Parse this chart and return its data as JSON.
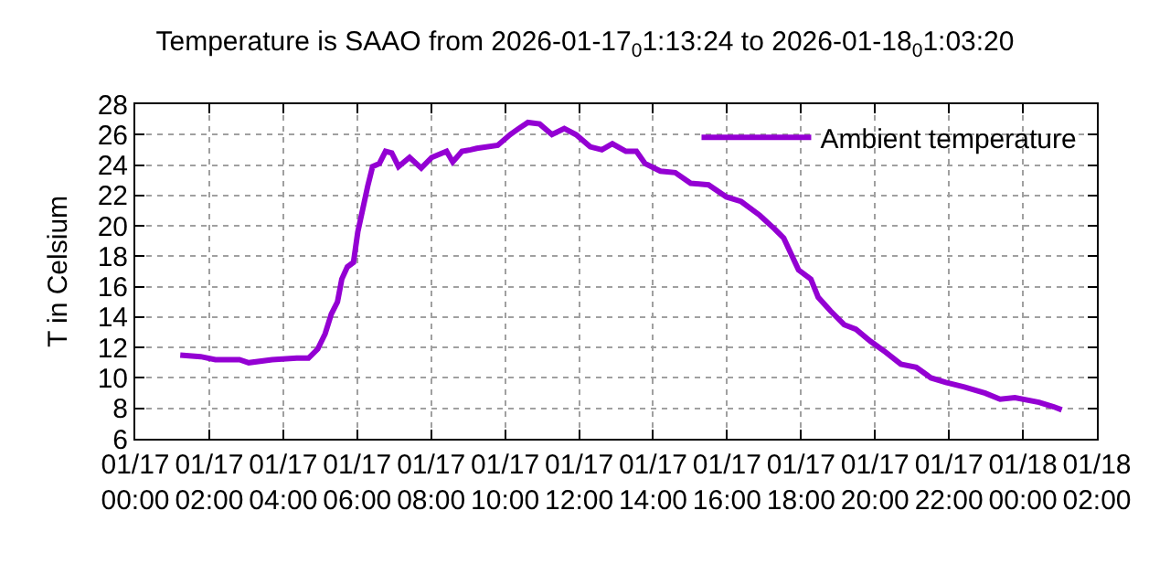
{
  "chart_data": {
    "type": "line",
    "title": "Temperature is SAAO from 2026-01-17$_{0}$1:13:24 to 2026-01-18$_{0}$1:03:20",
    "ylabel": "T in Celsium",
    "x": [
      "2026-01-17T01:13",
      "2026-01-17T01:46",
      "2026-01-17T02:10",
      "2026-01-17T02:49",
      "2026-01-17T03:04",
      "2026-01-17T03:42",
      "2026-01-17T04:22",
      "2026-01-17T04:41",
      "2026-01-17T04:56",
      "2026-01-17T05:08",
      "2026-01-17T05:18",
      "2026-01-17T05:28",
      "2026-01-17T05:35",
      "2026-01-17T05:44",
      "2026-01-17T05:54",
      "2026-01-17T06:01",
      "2026-01-17T06:09",
      "2026-01-17T06:17",
      "2026-01-17T06:25",
      "2026-01-17T06:36",
      "2026-01-17T06:46",
      "2026-01-17T06:56",
      "2026-01-17T07:07",
      "2026-01-17T07:25",
      "2026-01-17T07:44",
      "2026-01-17T08:01",
      "2026-01-17T08:25",
      "2026-01-17T08:35",
      "2026-01-17T08:50",
      "2026-01-17T09:04",
      "2026-01-17T09:14",
      "2026-01-17T09:48",
      "2026-01-17T10:08",
      "2026-01-17T10:22",
      "2026-01-17T10:37",
      "2026-01-17T10:56",
      "2026-01-17T11:16",
      "2026-01-17T11:36",
      "2026-01-17T11:55",
      "2026-01-17T12:18",
      "2026-01-17T12:37",
      "2026-01-17T12:54",
      "2026-01-17T13:16",
      "2026-01-17T13:33",
      "2026-01-17T13:47",
      "2026-01-17T14:12",
      "2026-01-17T14:36",
      "2026-01-17T15:01",
      "2026-01-17T15:30",
      "2026-01-17T15:59",
      "2026-01-17T16:23",
      "2026-01-17T16:53",
      "2026-01-17T17:17",
      "2026-01-17T17:32",
      "2026-01-17T17:56",
      "2026-01-17T18:16",
      "2026-01-17T18:28",
      "2026-01-17T18:48",
      "2026-01-17T19:10",
      "2026-01-17T19:29",
      "2026-01-17T19:53",
      "2026-01-17T20:17",
      "2026-01-17T20:42",
      "2026-01-17T21:07",
      "2026-01-17T21:31",
      "2026-01-17T21:55",
      "2026-01-17T22:25",
      "2026-01-17T22:59",
      "2026-01-17T23:23",
      "2026-01-17T23:47",
      "2026-01-18T00:26",
      "2026-01-18T00:50",
      "2026-01-18T01:03"
    ],
    "series": [
      {
        "name": "Ambient temperature",
        "color": "#9400d3",
        "values": [
          11.5,
          11.4,
          11.2,
          11.2,
          11.0,
          11.2,
          11.3,
          11.3,
          11.9,
          12.9,
          14.2,
          15.0,
          16.5,
          17.3,
          17.6,
          19.6,
          21.1,
          22.6,
          23.9,
          24.1,
          24.9,
          24.8,
          23.9,
          24.5,
          23.8,
          24.5,
          24.9,
          24.2,
          24.9,
          25.0,
          25.1,
          25.3,
          26.0,
          26.4,
          26.8,
          26.7,
          26.0,
          26.4,
          26.0,
          25.2,
          25.0,
          25.4,
          24.9,
          24.9,
          24.1,
          23.6,
          23.5,
          22.8,
          22.7,
          21.9,
          21.6,
          20.7,
          19.8,
          19.2,
          17.1,
          16.5,
          15.3,
          14.4,
          13.5,
          13.2,
          12.4,
          11.7,
          10.9,
          10.7,
          10.0,
          9.7,
          9.4,
          9.0,
          8.6,
          8.7,
          8.4,
          8.1,
          7.9
        ]
      }
    ],
    "xlim": [
      "2026-01-17T00:00",
      "2026-01-18T02:00"
    ],
    "xticks": [
      {
        "value": "2026-01-17T00:00",
        "label": "01/17\n00:00"
      },
      {
        "value": "2026-01-17T02:00",
        "label": "01/17\n02:00"
      },
      {
        "value": "2026-01-17T04:00",
        "label": "01/17\n04:00"
      },
      {
        "value": "2026-01-17T06:00",
        "label": "01/17\n06:00"
      },
      {
        "value": "2026-01-17T08:00",
        "label": "01/17\n08:00"
      },
      {
        "value": "2026-01-17T10:00",
        "label": "01/17\n10:00"
      },
      {
        "value": "2026-01-17T12:00",
        "label": "01/17\n12:00"
      },
      {
        "value": "2026-01-17T14:00",
        "label": "01/17\n14:00"
      },
      {
        "value": "2026-01-17T16:00",
        "label": "01/17\n16:00"
      },
      {
        "value": "2026-01-17T18:00",
        "label": "01/17\n18:00"
      },
      {
        "value": "2026-01-17T20:00",
        "label": "01/17\n20:00"
      },
      {
        "value": "2026-01-17T22:00",
        "label": "01/17\n22:00"
      },
      {
        "value": "2026-01-18T00:00",
        "label": "01/18\n00:00"
      },
      {
        "value": "2026-01-18T02:00",
        "label": "01/18\n02:00"
      }
    ],
    "ylim": [
      6,
      28
    ],
    "yticks": [
      6,
      8,
      10,
      12,
      14,
      16,
      18,
      20,
      22,
      24,
      26,
      28
    ],
    "grid": true,
    "legend": "top right",
    "marker": "none",
    "line_style": "solid"
  }
}
